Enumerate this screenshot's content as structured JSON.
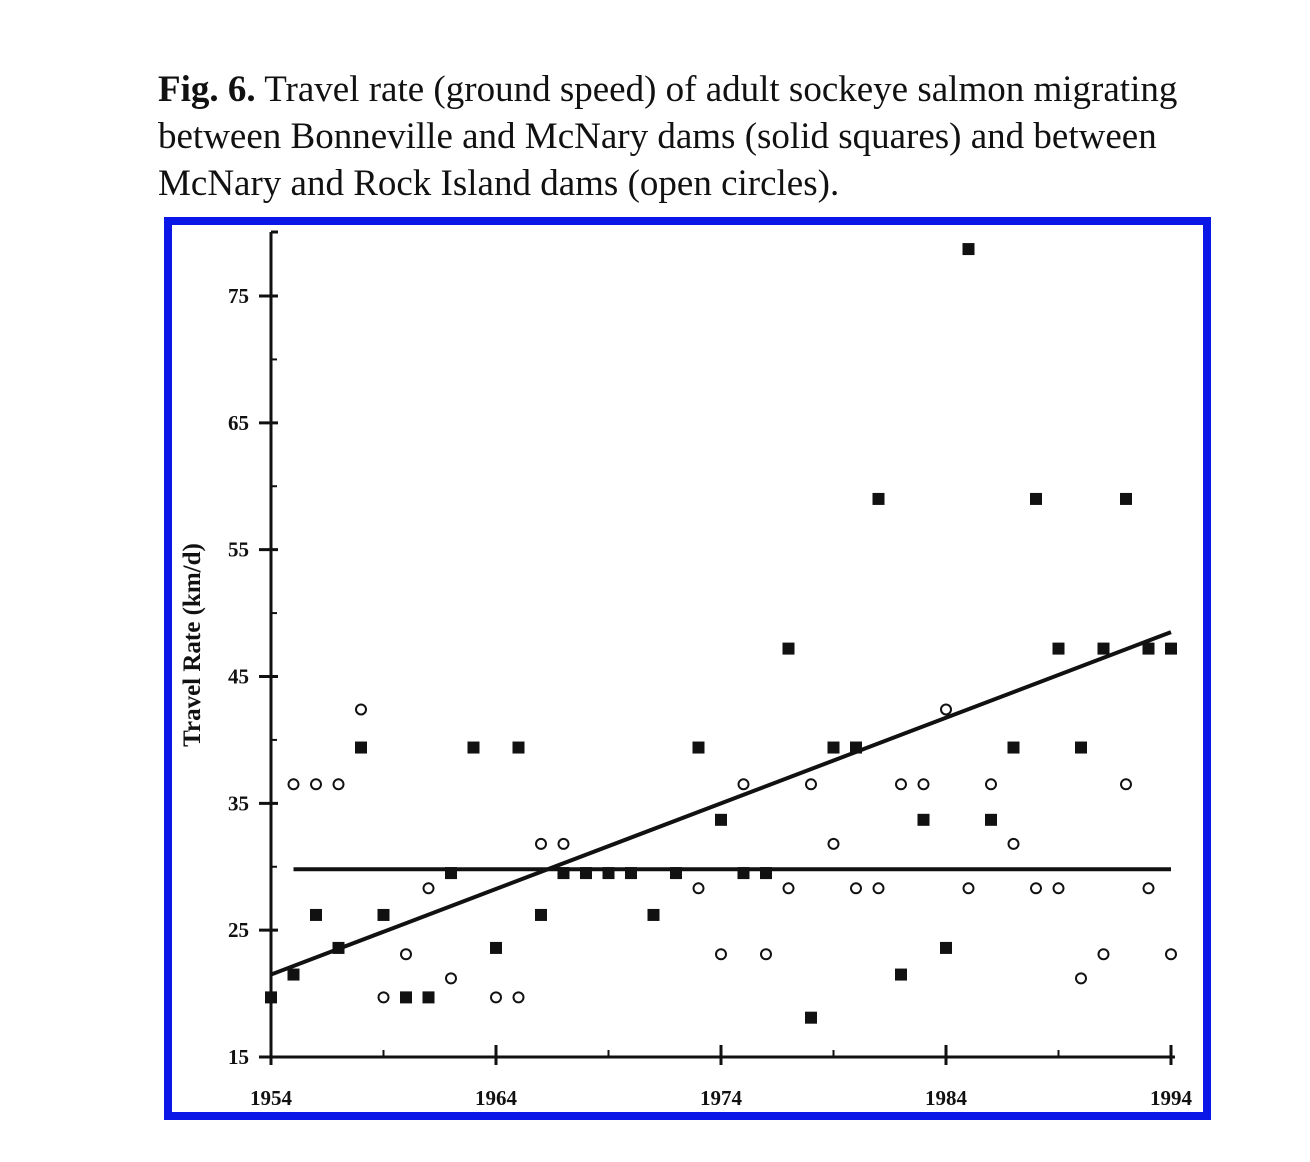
{
  "caption": {
    "label": "Fig. 6.",
    "text": "Travel rate (ground speed) of adult sockeye salmon migrating between Bonneville and McNary dams (solid squares) and between McNary and Rock Island dams (open circles)."
  },
  "colors": {
    "frame": "#0a17e6",
    "ink": "#111111"
  },
  "chart_data": {
    "type": "scatter",
    "title": "",
    "xlabel": "",
    "ylabel": "Travel Rate (km/d)",
    "xlim": [
      1954,
      1994
    ],
    "ylim": [
      15,
      80
    ],
    "x_ticks": [
      1954,
      1964,
      1974,
      1984,
      1994
    ],
    "y_ticks": [
      15,
      25,
      35,
      45,
      55,
      65,
      75
    ],
    "grid": false,
    "legend": "none",
    "series": [
      {
        "marker": "filled-square",
        "points": [
          [
            1954,
            19.7
          ],
          [
            1955,
            21.5
          ],
          [
            1956,
            26.2
          ],
          [
            1957,
            23.6
          ],
          [
            1958,
            39.4
          ],
          [
            1959,
            26.2
          ],
          [
            1960,
            19.7
          ],
          [
            1961,
            19.7
          ],
          [
            1962,
            29.5
          ],
          [
            1963,
            39.4
          ],
          [
            1964,
            23.6
          ],
          [
            1965,
            39.4
          ],
          [
            1966,
            26.2
          ],
          [
            1967,
            29.5
          ],
          [
            1968,
            29.5
          ],
          [
            1969,
            29.5
          ],
          [
            1970,
            29.5
          ],
          [
            1971,
            26.2
          ],
          [
            1972,
            29.5
          ],
          [
            1973,
            39.4
          ],
          [
            1974,
            33.7
          ],
          [
            1975,
            29.5
          ],
          [
            1976,
            29.5
          ],
          [
            1977,
            47.2
          ],
          [
            1978,
            18.1
          ],
          [
            1979,
            39.4
          ],
          [
            1980,
            39.4
          ],
          [
            1981,
            59.0
          ],
          [
            1982,
            21.5
          ],
          [
            1983,
            33.7
          ],
          [
            1984,
            23.6
          ],
          [
            1985,
            78.7
          ],
          [
            1986,
            33.7
          ],
          [
            1987,
            39.4
          ],
          [
            1988,
            59.0
          ],
          [
            1989,
            47.2
          ],
          [
            1990,
            39.4
          ],
          [
            1991,
            47.2
          ],
          [
            1992,
            59.0
          ],
          [
            1993,
            47.2
          ],
          [
            1994,
            47.2
          ]
        ]
      },
      {
        "marker": "open-circle",
        "points": [
          [
            1955,
            36.5
          ],
          [
            1956,
            36.5
          ],
          [
            1957,
            36.5
          ],
          [
            1958,
            42.4
          ],
          [
            1959,
            19.7
          ],
          [
            1960,
            23.1
          ],
          [
            1961,
            28.3
          ],
          [
            1962,
            21.2
          ],
          [
            1964,
            19.7
          ],
          [
            1965,
            19.7
          ],
          [
            1966,
            31.8
          ],
          [
            1967,
            31.8
          ],
          [
            1973,
            28.3
          ],
          [
            1974,
            23.1
          ],
          [
            1975,
            36.5
          ],
          [
            1976,
            23.1
          ],
          [
            1977,
            28.3
          ],
          [
            1978,
            36.5
          ],
          [
            1979,
            31.8
          ],
          [
            1980,
            28.3
          ],
          [
            1981,
            28.3
          ],
          [
            1982,
            36.5
          ],
          [
            1983,
            36.5
          ],
          [
            1984,
            42.4
          ],
          [
            1985,
            28.3
          ],
          [
            1986,
            36.5
          ],
          [
            1987,
            31.8
          ],
          [
            1988,
            28.3
          ],
          [
            1989,
            28.3
          ],
          [
            1990,
            21.2
          ],
          [
            1991,
            23.1
          ],
          [
            1992,
            36.5
          ],
          [
            1993,
            28.3
          ],
          [
            1994,
            23.1
          ]
        ]
      }
    ],
    "lines": [
      {
        "kind": "regression",
        "from": [
          1954,
          21.5
        ],
        "to": [
          1994,
          48.5
        ]
      },
      {
        "kind": "horizontal",
        "from": [
          1955,
          29.8
        ],
        "to": [
          1994,
          29.8
        ]
      }
    ]
  }
}
